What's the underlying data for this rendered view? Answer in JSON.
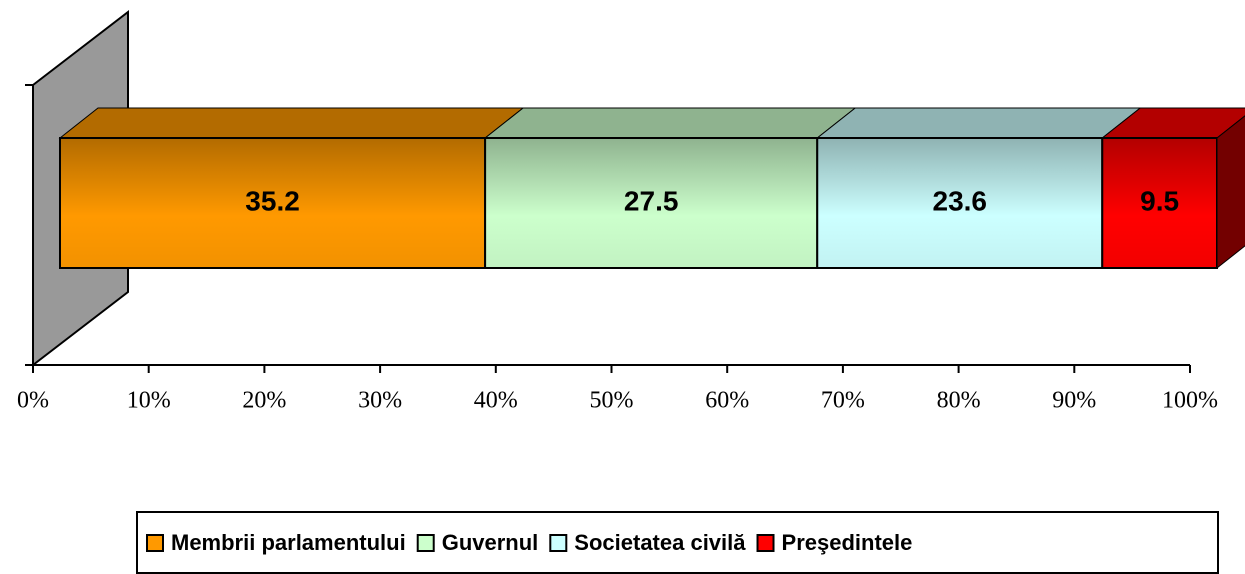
{
  "chart_data": {
    "type": "bar",
    "orientation": "horizontal",
    "stacking": "percent",
    "series": [
      {
        "name": "Membrii parlamentului",
        "color": "#FF9900",
        "values": [
          35.2
        ]
      },
      {
        "name": "Guvernul",
        "color": "#CCFFCC",
        "values": [
          27.5
        ]
      },
      {
        "name": "Societatea civilă",
        "color": "#CCFFFF",
        "values": [
          23.6
        ]
      },
      {
        "name": "Preşedintele",
        "color": "#FF0000",
        "values": [
          9.5
        ]
      }
    ],
    "xlim": [
      0,
      100
    ],
    "xticks": [
      {
        "value": 0,
        "label": "0%"
      },
      {
        "value": 10,
        "label": "10%"
      },
      {
        "value": 20,
        "label": "20%"
      },
      {
        "value": 30,
        "label": "30%"
      },
      {
        "value": 40,
        "label": "40%"
      },
      {
        "value": 50,
        "label": "50%"
      },
      {
        "value": 60,
        "label": "60%"
      },
      {
        "value": 70,
        "label": "70%"
      },
      {
        "value": 80,
        "label": "80%"
      },
      {
        "value": 90,
        "label": "90%"
      },
      {
        "value": 100,
        "label": "100%"
      }
    ],
    "legend": "bottom"
  }
}
